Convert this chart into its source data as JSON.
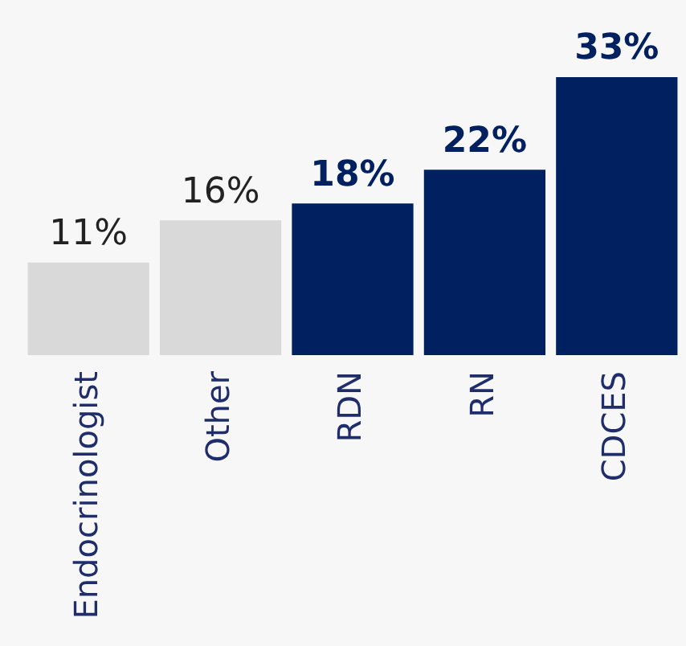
{
  "chart_data": {
    "type": "bar",
    "categories": [
      "Endocrinologist",
      "Other",
      "RDN",
      "RN",
      "CDCES"
    ],
    "values": [
      11,
      16,
      18,
      22,
      33
    ],
    "colors": [
      "#d9d9d9",
      "#d9d9d9",
      "#002060",
      "#002060",
      "#002060"
    ],
    "value_labels": [
      "11%",
      "16%",
      "18%",
      "22%",
      "33%"
    ],
    "grid": false,
    "legend": false
  }
}
